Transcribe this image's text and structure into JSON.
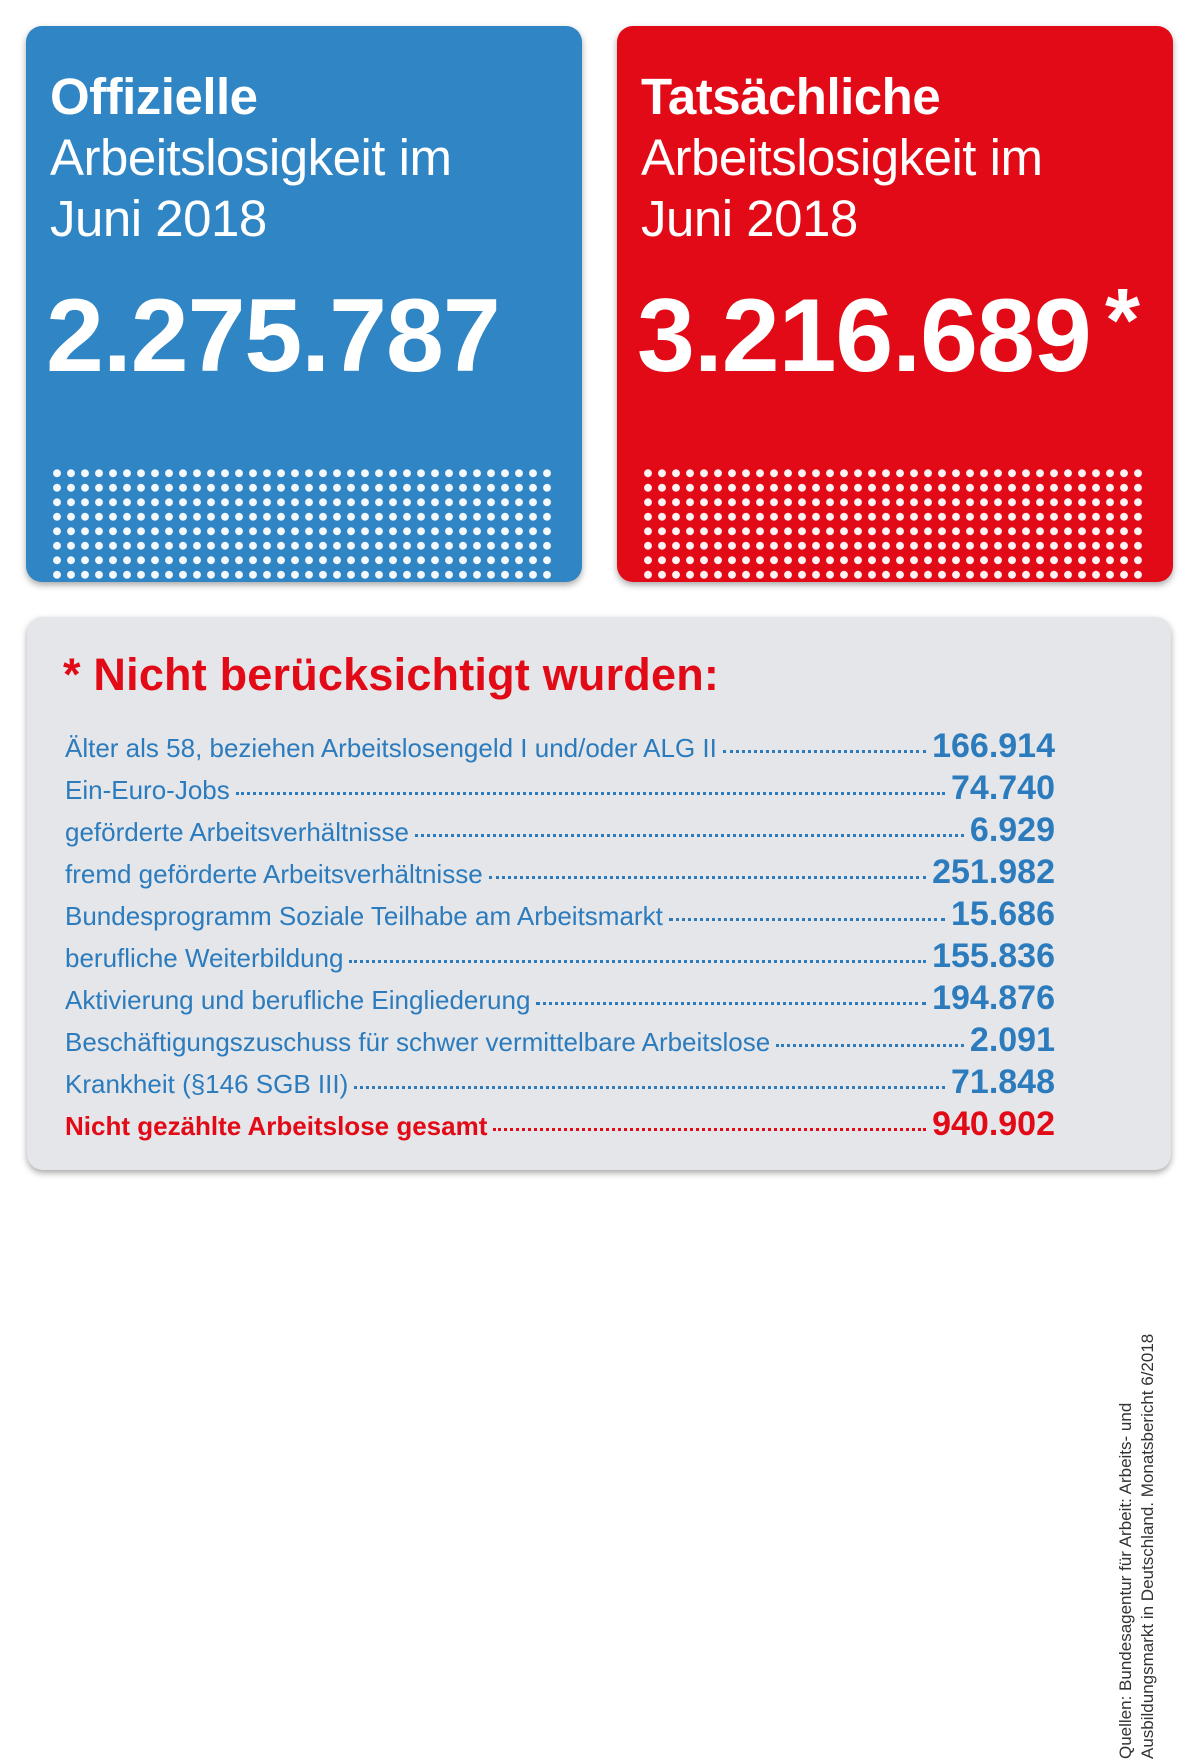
{
  "official": {
    "title_strong": "Offizielle",
    "title_line2": "Arbeitslosigkeit im",
    "title_line3": "Juni 2018",
    "number": "2.275.787",
    "color": "#3085c5"
  },
  "actual": {
    "title_strong": "Tatsächliche",
    "title_line2": "Arbeitslosigkeit im",
    "title_line3": "Juni 2018",
    "number": "3.216.689",
    "asterisk": "*",
    "color": "#e20a16"
  },
  "details": {
    "heading": "* Nicht berücksichtigt wurden:",
    "rows": [
      {
        "label": "Älter als 58, beziehen Arbeitslosengeld I und/oder ALG II",
        "value": "166.914"
      },
      {
        "label": "Ein-Euro-Jobs",
        "value": "74.740"
      },
      {
        "label": "geförderte Arbeitsverhältnisse",
        "value": "6.929"
      },
      {
        "label": "fremd geförderte Arbeitsverhältnisse",
        "value": "251.982"
      },
      {
        "label": "Bundesprogramm Soziale Teilhabe am Arbeitsmarkt",
        "value": "15.686"
      },
      {
        "label": "berufliche Weiterbildung",
        "value": "155.836"
      },
      {
        "label": "Aktivierung und berufliche Eingliederung",
        "value": "194.876"
      },
      {
        "label": "Beschäftigungszuschuss für schwer vermittelbare Arbeitslose",
        "value": "2.091"
      },
      {
        "label": "Krankheit (§146 SGB III)",
        "value": "71.848"
      }
    ],
    "total": {
      "label": "Nicht gezählte Arbeitslose gesamt",
      "value": "940.902"
    },
    "source_line1": "Quellen: Bundesagentur für Arbeit: Arbeits- und",
    "source_line2": "Ausbildungsmarkt in Deutschland. Monatsbericht 6/2018"
  }
}
